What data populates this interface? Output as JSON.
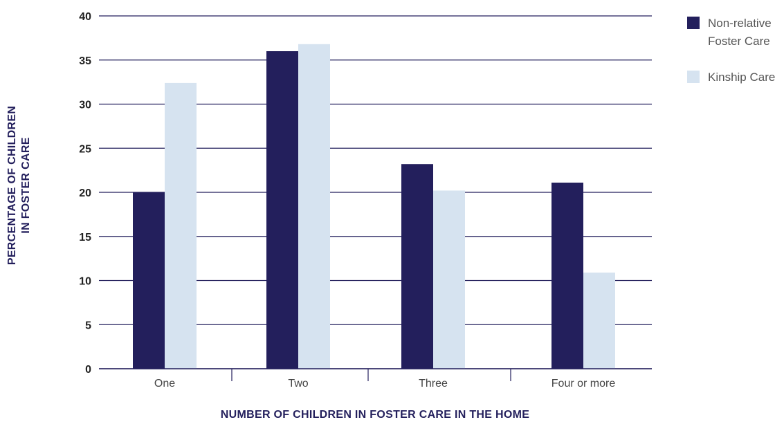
{
  "chart_data": {
    "type": "bar",
    "categories": [
      "One",
      "Two",
      "Three",
      "Four or more"
    ],
    "series": [
      {
        "name": "Non-relative Foster Care",
        "legend_lines": [
          "Non-relative",
          "Foster Care"
        ],
        "color": "#231f5c",
        "values": [
          20,
          36,
          23.2,
          21.1
        ]
      },
      {
        "name": "Kinship Care",
        "legend_lines": [
          "Kinship Care"
        ],
        "color": "#d6e3f0",
        "values": [
          32.4,
          36.8,
          20.2,
          10.9
        ]
      }
    ],
    "xlabel": "NUMBER OF CHILDREN IN FOSTER CARE IN THE HOME",
    "ylabel_lines": [
      "PERCENTAGE OF CHILDREN",
      "IN FOSTER CARE"
    ],
    "ylim": [
      0,
      40
    ],
    "yticks": [
      0,
      5,
      10,
      15,
      20,
      25,
      30,
      35,
      40
    ],
    "grid": true,
    "legend_position": "top-right",
    "colors": {
      "grid": "#231f5c",
      "axis": "#231f5c"
    }
  }
}
